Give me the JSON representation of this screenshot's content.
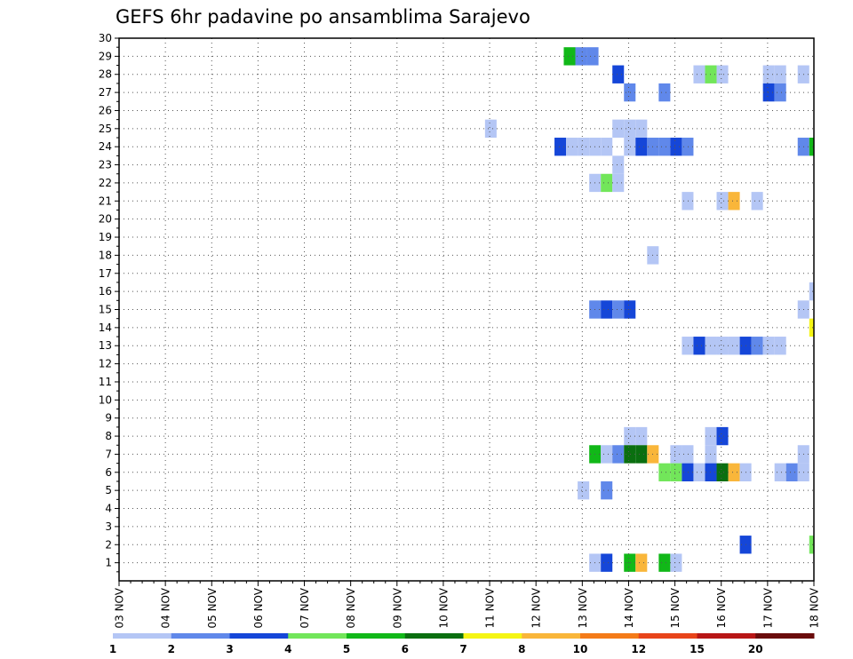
{
  "chart_data": {
    "type": "heatmap",
    "title": "GEFS 6hr padavine po ansamblima Sarajevo",
    "xlabel": "",
    "ylabel": "",
    "x_ticks": [
      "03 NOV",
      "04 NOV",
      "05 NOV",
      "06 NOV",
      "07 NOV",
      "08 NOV",
      "09 NOV",
      "10 NOV",
      "11 NOV",
      "12 NOV",
      "13 NOV",
      "14 NOV",
      "15 NOV",
      "16 NOV",
      "17 NOV",
      "18 NOV"
    ],
    "x_range_days": [
      0,
      15
    ],
    "y_ticks": [
      "1",
      "2",
      "3",
      "4",
      "5",
      "6",
      "7",
      "8",
      "9",
      "10",
      "11",
      "12",
      "13",
      "14",
      "15",
      "16",
      "17",
      "18",
      "19",
      "20",
      "21",
      "22",
      "23",
      "24",
      "25",
      "26",
      "27",
      "28",
      "29",
      "30"
    ],
    "y_range": [
      0,
      30
    ],
    "grid": true,
    "colorbar": {
      "labels": [
        "1",
        "2",
        "3",
        "4",
        "5",
        "6",
        "7",
        "8",
        "10",
        "12",
        "15",
        "20"
      ],
      "colors": [
        "#b4c6f5",
        "#6088ea",
        "#1546d8",
        "#72e65a",
        "#11b818",
        "#0a6f10",
        "#f5f514",
        "#f9b63a",
        "#f47b18",
        "#e8441a",
        "#b81616",
        "#6a0c0c"
      ]
    },
    "cells": [
      {
        "m": 29,
        "x": 9.6,
        "level": 5
      },
      {
        "m": 29,
        "x": 9.85,
        "level": 2
      },
      {
        "m": 29,
        "x": 10.1,
        "level": 2
      },
      {
        "m": 28,
        "x": 10.65,
        "level": 3
      },
      {
        "m": 28,
        "x": 12.4,
        "level": 1
      },
      {
        "m": 28,
        "x": 12.65,
        "level": 4
      },
      {
        "m": 28,
        "x": 12.9,
        "level": 1
      },
      {
        "m": 28,
        "x": 13.9,
        "level": 1
      },
      {
        "m": 28,
        "x": 14.15,
        "level": 1
      },
      {
        "m": 28,
        "x": 14.65,
        "level": 1
      },
      {
        "m": 27,
        "x": 10.9,
        "level": 2
      },
      {
        "m": 27,
        "x": 11.65,
        "level": 2
      },
      {
        "m": 27,
        "x": 13.9,
        "level": 3
      },
      {
        "m": 27,
        "x": 14.15,
        "level": 2
      },
      {
        "m": 25,
        "x": 7.9,
        "level": 1
      },
      {
        "m": 25,
        "x": 10.65,
        "level": 1
      },
      {
        "m": 25,
        "x": 10.9,
        "level": 1
      },
      {
        "m": 25,
        "x": 11.15,
        "level": 1
      },
      {
        "m": 24,
        "x": 9.4,
        "level": 3
      },
      {
        "m": 24,
        "x": 9.65,
        "level": 1
      },
      {
        "m": 24,
        "x": 9.9,
        "level": 1
      },
      {
        "m": 24,
        "x": 10.15,
        "level": 1
      },
      {
        "m": 24,
        "x": 10.4,
        "level": 1
      },
      {
        "m": 24,
        "x": 10.9,
        "level": 1
      },
      {
        "m": 24,
        "x": 11.15,
        "level": 3
      },
      {
        "m": 24,
        "x": 11.4,
        "level": 2
      },
      {
        "m": 24,
        "x": 11.65,
        "level": 2
      },
      {
        "m": 24,
        "x": 11.9,
        "level": 3
      },
      {
        "m": 24,
        "x": 12.15,
        "level": 2
      },
      {
        "m": 24,
        "x": 14.65,
        "level": 2
      },
      {
        "m": 24,
        "x": 14.9,
        "level": 5
      },
      {
        "m": 23,
        "x": 10.65,
        "level": 1
      },
      {
        "m": 22,
        "x": 10.15,
        "level": 1
      },
      {
        "m": 22,
        "x": 10.4,
        "level": 4
      },
      {
        "m": 22,
        "x": 10.65,
        "level": 1
      },
      {
        "m": 21,
        "x": 12.15,
        "level": 1
      },
      {
        "m": 21,
        "x": 12.9,
        "level": 1
      },
      {
        "m": 21,
        "x": 13.15,
        "level": 8
      },
      {
        "m": 21,
        "x": 13.65,
        "level": 1
      },
      {
        "m": 18,
        "x": 11.4,
        "level": 1
      },
      {
        "m": 16,
        "x": 14.9,
        "level": 1
      },
      {
        "m": 15,
        "x": 10.15,
        "level": 2
      },
      {
        "m": 15,
        "x": 10.4,
        "level": 3
      },
      {
        "m": 15,
        "x": 10.65,
        "level": 2
      },
      {
        "m": 15,
        "x": 10.9,
        "level": 3
      },
      {
        "m": 15,
        "x": 14.65,
        "level": 1
      },
      {
        "m": 14,
        "x": 14.9,
        "level": 7
      },
      {
        "m": 13,
        "x": 12.15,
        "level": 1
      },
      {
        "m": 13,
        "x": 12.4,
        "level": 3
      },
      {
        "m": 13,
        "x": 12.65,
        "level": 1
      },
      {
        "m": 13,
        "x": 12.9,
        "level": 1
      },
      {
        "m": 13,
        "x": 13.15,
        "level": 1
      },
      {
        "m": 13,
        "x": 13.4,
        "level": 3
      },
      {
        "m": 13,
        "x": 13.65,
        "level": 2
      },
      {
        "m": 13,
        "x": 13.9,
        "level": 1
      },
      {
        "m": 13,
        "x": 14.15,
        "level": 1
      },
      {
        "m": 8,
        "x": 10.9,
        "level": 1
      },
      {
        "m": 8,
        "x": 11.15,
        "level": 1
      },
      {
        "m": 8,
        "x": 12.65,
        "level": 1
      },
      {
        "m": 8,
        "x": 12.9,
        "level": 3
      },
      {
        "m": 7,
        "x": 10.15,
        "level": 5
      },
      {
        "m": 7,
        "x": 10.4,
        "level": 1
      },
      {
        "m": 7,
        "x": 10.65,
        "level": 2
      },
      {
        "m": 7,
        "x": 10.9,
        "level": 6
      },
      {
        "m": 7,
        "x": 11.15,
        "level": 6
      },
      {
        "m": 7,
        "x": 11.4,
        "level": 8
      },
      {
        "m": 7,
        "x": 11.9,
        "level": 1
      },
      {
        "m": 7,
        "x": 12.15,
        "level": 1
      },
      {
        "m": 7,
        "x": 12.65,
        "level": 1
      },
      {
        "m": 7,
        "x": 14.65,
        "level": 1
      },
      {
        "m": 6,
        "x": 11.65,
        "level": 4
      },
      {
        "m": 6,
        "x": 11.9,
        "level": 4
      },
      {
        "m": 6,
        "x": 12.15,
        "level": 3
      },
      {
        "m": 6,
        "x": 12.4,
        "level": 1
      },
      {
        "m": 6,
        "x": 12.65,
        "level": 3
      },
      {
        "m": 6,
        "x": 12.9,
        "level": 6
      },
      {
        "m": 6,
        "x": 13.15,
        "level": 8
      },
      {
        "m": 6,
        "x": 13.4,
        "level": 1
      },
      {
        "m": 6,
        "x": 14.15,
        "level": 1
      },
      {
        "m": 6,
        "x": 14.4,
        "level": 2
      },
      {
        "m": 6,
        "x": 14.65,
        "level": 1
      },
      {
        "m": 5,
        "x": 9.9,
        "level": 1
      },
      {
        "m": 5,
        "x": 10.4,
        "level": 2
      },
      {
        "m": 2,
        "x": 13.4,
        "level": 3
      },
      {
        "m": 2,
        "x": 14.9,
        "level": 4
      },
      {
        "m": 1,
        "x": 10.15,
        "level": 1
      },
      {
        "m": 1,
        "x": 10.4,
        "level": 3
      },
      {
        "m": 1,
        "x": 10.9,
        "level": 5
      },
      {
        "m": 1,
        "x": 11.15,
        "level": 8
      },
      {
        "m": 1,
        "x": 11.65,
        "level": 5
      },
      {
        "m": 1,
        "x": 11.9,
        "level": 1
      }
    ]
  }
}
